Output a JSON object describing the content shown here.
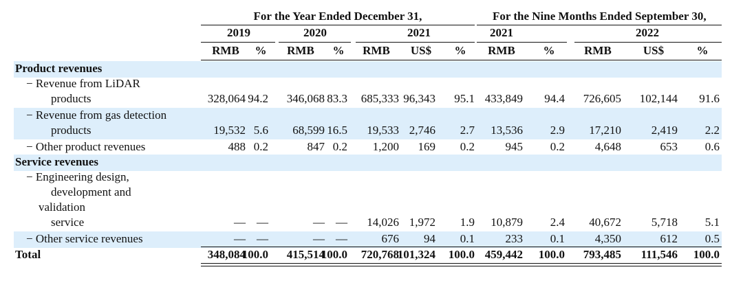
{
  "header": {
    "year_ended": "For the Year Ended December 31,",
    "nine_months": "For the Nine Months Ended September 30,",
    "years": [
      "2019",
      "2020",
      "2021",
      "2021",
      "2022"
    ],
    "units": [
      "RMB",
      "%",
      "RMB",
      "%",
      "RMB",
      "US$",
      "%",
      "RMB",
      "%",
      "RMB",
      "US$",
      "%"
    ]
  },
  "rows": [
    {
      "type": "section",
      "label": "Product revenues"
    },
    {
      "type": "data",
      "label": [
        "− Revenue from LiDAR",
        "products"
      ],
      "values": [
        "328,064",
        "94.2",
        "346,068",
        "83.3",
        "685,333",
        "96,343",
        "95.1",
        "433,849",
        "94.4",
        "726,605",
        "102,144",
        "91.6"
      ]
    },
    {
      "type": "data",
      "label": [
        "− Revenue from gas detection",
        "products"
      ],
      "values": [
        "19,532",
        "5.6",
        "68,599",
        "16.5",
        "19,533",
        "2,746",
        "2.7",
        "13,536",
        "2.9",
        "17,210",
        "2,419",
        "2.2"
      ]
    },
    {
      "type": "data",
      "label": [
        "− Other product revenues"
      ],
      "values": [
        "488",
        "0.2",
        "847",
        "0.2",
        "1,200",
        "169",
        "0.2",
        "945",
        "0.2",
        "4,648",
        "653",
        "0.6"
      ]
    },
    {
      "type": "section",
      "label": "Service revenues"
    },
    {
      "type": "data",
      "label": [
        "− Engineering design,",
        "development and",
        "validation",
        "service"
      ],
      "values": [
        "—",
        "—",
        "—",
        "—",
        "14,026",
        "1,972",
        "1.9",
        "10,879",
        "2.4",
        "40,672",
        "5,718",
        "5.1"
      ]
    },
    {
      "type": "data",
      "label": [
        "− Other service revenues"
      ],
      "values": [
        "—",
        "—",
        "—",
        "—",
        "676",
        "94",
        "0.1",
        "233",
        "0.1",
        "4,350",
        "612",
        "0.5"
      ]
    },
    {
      "type": "total",
      "label": [
        "Total"
      ],
      "values": [
        "348,084",
        "100.0",
        "415,514",
        "100.0",
        "720,768",
        "101,324",
        "100.0",
        "459,442",
        "100.0",
        "793,485",
        "111,546",
        "100.0"
      ]
    }
  ]
}
